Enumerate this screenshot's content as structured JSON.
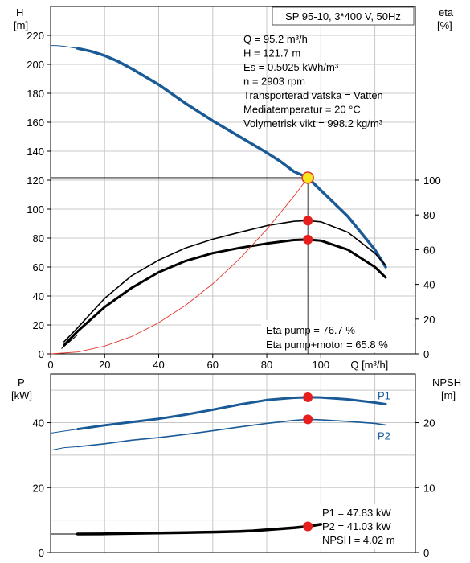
{
  "chart_data": [
    {
      "type": "line",
      "id": "pump-curve",
      "title": "SP 95-10, 3*400 V, 50Hz",
      "xlabel": "Q [m³/h]",
      "ylabel_left": "H",
      "ylabel_left_unit": "[m]",
      "ylabel_right": "eta",
      "ylabel_right_unit": "[%]",
      "xlim": [
        0,
        135
      ],
      "ylim_left": [
        0,
        240
      ],
      "ylim_right": [
        0,
        100
      ],
      "xticks": [
        0,
        20,
        40,
        60,
        80,
        100
      ],
      "yticks_left": [
        0,
        20,
        40,
        60,
        80,
        100,
        120,
        140,
        160,
        180,
        200,
        220
      ],
      "yticks_right": [
        0,
        20,
        40,
        60,
        80,
        100
      ],
      "grid": true,
      "info_lines": [
        "Q = 95.2 m³/h",
        "H = 121.7 m",
        "Es = 0.5025 kWh/m³",
        "n = 2903 rpm",
        "Transporterad vätska = Vatten",
        "Mediatemperatur = 20 °C",
        "Volymetrisk vikt = 998.2 kg/m³"
      ],
      "result_lines": [
        "Eta pump = 76.7 %",
        "Eta pump+motor = 65.8 %"
      ],
      "series": [
        {
          "role": "head",
          "axis": "left",
          "color": "#1a5a96",
          "thin_x": [
            0,
            2,
            5,
            10
          ],
          "thin_y": [
            213,
            213,
            212.5,
            211
          ],
          "x": [
            10,
            15,
            20,
            25,
            30,
            40,
            50,
            60,
            70,
            80,
            85,
            90,
            95.2,
            100,
            110,
            120,
            124
          ],
          "y": [
            211,
            209,
            206,
            202,
            197,
            186,
            173,
            161,
            150,
            139,
            133,
            126,
            121.7,
            113,
            95,
            72,
            60
          ]
        },
        {
          "role": "efficiency-pump",
          "axis": "right",
          "color": "#000000",
          "x": [
            5,
            10,
            20,
            30,
            40,
            50,
            60,
            70,
            80,
            90,
            95.2,
            100,
            110,
            120,
            124
          ],
          "y": [
            7,
            15,
            32,
            45,
            54,
            61,
            66,
            70,
            73.8,
            76.3,
            76.7,
            76,
            70,
            58,
            51
          ]
        },
        {
          "role": "efficiency-pump-motor",
          "axis": "right",
          "color": "#000000",
          "x": [
            5,
            10,
            20,
            30,
            40,
            50,
            60,
            70,
            80,
            90,
            95.2,
            100,
            110,
            120,
            124
          ],
          "y": [
            5,
            13,
            27,
            38,
            47,
            53.5,
            58,
            61,
            63.5,
            65.5,
            65.8,
            65.2,
            60,
            50,
            44
          ]
        },
        {
          "role": "system-curve",
          "axis": "left",
          "color": "#e0372d",
          "x": [
            0,
            10,
            20,
            30,
            40,
            50,
            60,
            70,
            80,
            90,
            95.2
          ],
          "y": [
            0,
            1.3,
            5.4,
            12,
            21.5,
            33.6,
            48.4,
            65.8,
            86,
            108.8,
            121.7
          ]
        }
      ],
      "points": [
        {
          "role": "operating-point",
          "x": 95.2,
          "y": 121.7,
          "axis": "left",
          "fill": "#f5e61e",
          "stroke": "#e0372d"
        },
        {
          "role": "eta-pump-point",
          "x": 95.2,
          "y": 76.7,
          "axis": "right",
          "fill": "#e61e1e"
        },
        {
          "role": "eta-pump-motor-point",
          "x": 95.2,
          "y": 65.8,
          "axis": "right",
          "fill": "#e61e1e"
        }
      ]
    },
    {
      "type": "line",
      "id": "power-npsh",
      "ylabel_left": "P",
      "ylabel_left_unit": "[kW]",
      "ylabel_right": "NPSH",
      "ylabel_right_unit": "[m]",
      "xlim": [
        0,
        135
      ],
      "ylim_left": [
        0,
        55
      ],
      "ylim_right": [
        0,
        27.5
      ],
      "yticks_left": [
        0,
        20,
        40
      ],
      "yticks_right": [
        0,
        10,
        20
      ],
      "grid": true,
      "result_lines": [
        "P1 = 47.83 kW",
        "P2 = 41.03 kW",
        "NPSH = 4.02 m"
      ],
      "series": [
        {
          "name": "P1",
          "axis": "left",
          "color": "#1a5a96",
          "thin_x": [
            0,
            5,
            10
          ],
          "thin_y": [
            36.8,
            37.4,
            38
          ],
          "x": [
            10,
            20,
            30,
            40,
            50,
            60,
            70,
            80,
            90,
            95.2,
            100,
            110,
            120,
            124
          ],
          "y": [
            38,
            39.2,
            40.2,
            41.2,
            42.5,
            44,
            45.6,
            47,
            47.7,
            47.83,
            47.8,
            47.2,
            46.2,
            45.7
          ]
        },
        {
          "name": "P2",
          "axis": "left",
          "color": "#1a5a96",
          "thin_x": [
            0,
            5,
            10
          ],
          "thin_y": [
            31.5,
            32.3,
            32.6
          ],
          "x": [
            10,
            20,
            30,
            40,
            50,
            60,
            70,
            80,
            90,
            95.2,
            100,
            110,
            120,
            124
          ],
          "y": [
            32.6,
            33.5,
            34.6,
            35.4,
            36.4,
            37.5,
            38.7,
            39.8,
            40.7,
            41.03,
            40.9,
            40.4,
            39.8,
            39.3
          ]
        },
        {
          "role": "npsh",
          "axis": "right",
          "color": "#000000",
          "thin_x": [
            0,
            10
          ],
          "thin_y": [
            2.85,
            2.85
          ],
          "x": [
            10,
            20,
            30,
            40,
            50,
            60,
            70,
            75,
            80,
            85,
            90,
            95.2,
            100
          ],
          "y": [
            2.85,
            2.88,
            2.94,
            3.0,
            3.07,
            3.15,
            3.25,
            3.35,
            3.5,
            3.65,
            3.8,
            4.02,
            4.35
          ]
        }
      ],
      "points": [
        {
          "role": "p1-point",
          "x": 95.2,
          "y": 47.83,
          "axis": "left",
          "fill": "#e61e1e"
        },
        {
          "role": "p2-point",
          "x": 95.2,
          "y": 41.03,
          "axis": "left",
          "fill": "#e61e1e"
        },
        {
          "role": "npsh-point",
          "x": 95.2,
          "y": 4.02,
          "axis": "right",
          "fill": "#e61e1e"
        }
      ]
    }
  ]
}
